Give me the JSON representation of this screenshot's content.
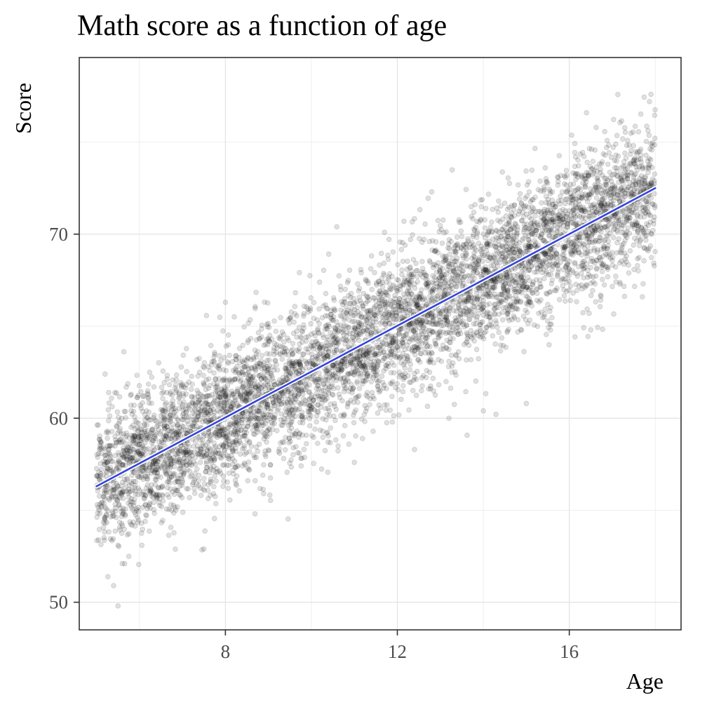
{
  "chart_data": {
    "type": "scatter",
    "title": "Math score as a function of age",
    "xlabel": "Age",
    "ylabel": "Score",
    "xlim": [
      4.6,
      18.6
    ],
    "ylim": [
      48.5,
      79.6
    ],
    "x_ticks": [
      8,
      12,
      16
    ],
    "y_ticks": [
      50,
      60,
      70
    ],
    "x_minor_gridlines": [
      6,
      10,
      14,
      18
    ],
    "y_minor_gridlines": [
      55,
      65,
      75
    ],
    "grid": true,
    "point_color": "#000000",
    "point_opacity": 0.12,
    "fit_line_color": "#3344dd",
    "series": [
      {
        "kind": "points",
        "x_range": [
          5,
          18
        ],
        "n_points_approx": 6000,
        "approx_relation": "y ≈ 56.3 + 1.24·(x − 5)",
        "approx_residual_sd": 1.9,
        "representative_points": [
          [
            5.4,
            50.9
          ],
          [
            5.5,
            49.8
          ],
          [
            5.2,
            62.4
          ],
          [
            5.6,
            52.1
          ],
          [
            7.5,
            52.9
          ],
          [
            8.0,
            66.3
          ],
          [
            12.4,
            58.3
          ],
          [
            11.0,
            57.6
          ],
          [
            14.0,
            60.4
          ],
          [
            15.0,
            60.8
          ],
          [
            12.8,
            72.3
          ],
          [
            16.4,
            76.6
          ],
          [
            17.9,
            77.6
          ],
          [
            17.7,
            66.6
          ],
          [
            16.5,
            64.8
          ],
          [
            13.2,
            60.0
          ]
        ]
      },
      {
        "kind": "fit_line",
        "x": [
          5,
          18
        ],
        "y": [
          56.3,
          72.5
        ]
      }
    ]
  }
}
